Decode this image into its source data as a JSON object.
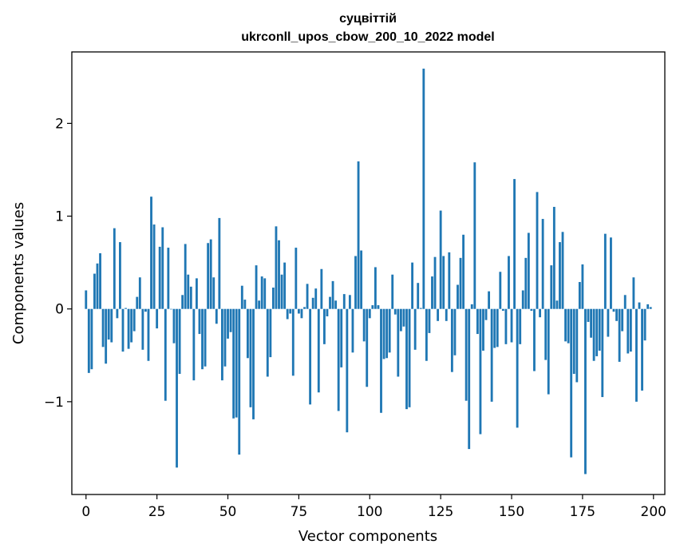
{
  "chart_data": {
    "type": "bar",
    "title": "суцвіттій",
    "subtitle": "ukrconll_upos_cbow_200_10_2022 model",
    "xlabel": "Vector components",
    "ylabel": "Components values",
    "xlim": [
      -5,
      204
    ],
    "ylim": [
      -2.0,
      2.77
    ],
    "xticks": [
      0,
      25,
      50,
      75,
      100,
      125,
      150,
      175,
      200
    ],
    "yticks": [
      -1,
      0,
      1,
      2
    ],
    "ytick_labels": [
      "−1",
      "0",
      "1",
      "2"
    ],
    "bar_color": "#1f77b4",
    "values": [
      0.2,
      -0.69,
      -0.65,
      0.38,
      0.49,
      0.6,
      -0.41,
      -0.59,
      -0.33,
      -0.36,
      0.87,
      -0.1,
      0.72,
      -0.46,
      0.01,
      -0.43,
      -0.36,
      -0.24,
      0.13,
      0.34,
      -0.44,
      -0.03,
      -0.56,
      1.21,
      0.91,
      -0.21,
      0.67,
      0.88,
      -0.99,
      0.66,
      0.0,
      -0.37,
      -1.71,
      -0.7,
      0.15,
      0.7,
      0.37,
      0.24,
      -0.77,
      0.33,
      -0.27,
      -0.65,
      -0.62,
      0.71,
      0.75,
      0.34,
      -0.16,
      0.98,
      -0.77,
      -0.62,
      -0.32,
      -0.25,
      -1.18,
      -1.17,
      -1.57,
      0.25,
      0.1,
      -0.53,
      -1.06,
      -1.19,
      0.47,
      0.09,
      0.35,
      0.33,
      -0.73,
      -0.52,
      0.23,
      0.89,
      0.74,
      0.37,
      0.5,
      -0.11,
      -0.05,
      -0.72,
      0.66,
      -0.05,
      -0.1,
      0.02,
      0.27,
      -1.03,
      0.12,
      0.22,
      -0.9,
      0.43,
      -0.38,
      -0.08,
      0.13,
      0.3,
      0.09,
      -1.1,
      -0.63,
      0.16,
      -1.33,
      0.15,
      -0.47,
      0.57,
      1.59,
      0.63,
      -0.35,
      -0.84,
      -0.1,
      0.04,
      0.45,
      0.04,
      -1.12,
      -0.54,
      -0.53,
      -0.47,
      0.37,
      -0.06,
      -0.73,
      -0.24,
      -0.19,
      -1.08,
      -1.06,
      0.5,
      -0.44,
      0.28,
      0.01,
      2.59,
      -0.56,
      -0.26,
      0.35,
      0.56,
      -0.13,
      1.06,
      0.57,
      -0.13,
      0.61,
      -0.68,
      -0.5,
      0.26,
      0.55,
      0.8,
      -0.99,
      -1.51,
      0.05,
      1.58,
      -0.27,
      -1.35,
      -0.45,
      -0.12,
      0.19,
      -1.0,
      -0.42,
      -0.41,
      0.4,
      -0.02,
      -0.38,
      0.57,
      -0.36,
      1.4,
      -1.28,
      -0.38,
      0.2,
      0.55,
      0.82,
      -0.02,
      -0.67,
      1.26,
      -0.09,
      0.97,
      -0.55,
      -0.92,
      0.47,
      1.1,
      0.09,
      0.72,
      0.83,
      -0.35,
      -0.37,
      -1.6,
      -0.7,
      -0.79,
      0.29,
      0.48,
      -1.78,
      -0.14,
      -0.31,
      -0.56,
      -0.51,
      -0.45,
      -0.95,
      0.81,
      -0.3,
      0.77,
      -0.03,
      -0.13,
      -0.57,
      -0.24,
      0.15,
      -0.48,
      -0.46,
      0.34,
      -1.0,
      0.07,
      -0.88,
      -0.34,
      0.05,
      0.02
    ]
  }
}
